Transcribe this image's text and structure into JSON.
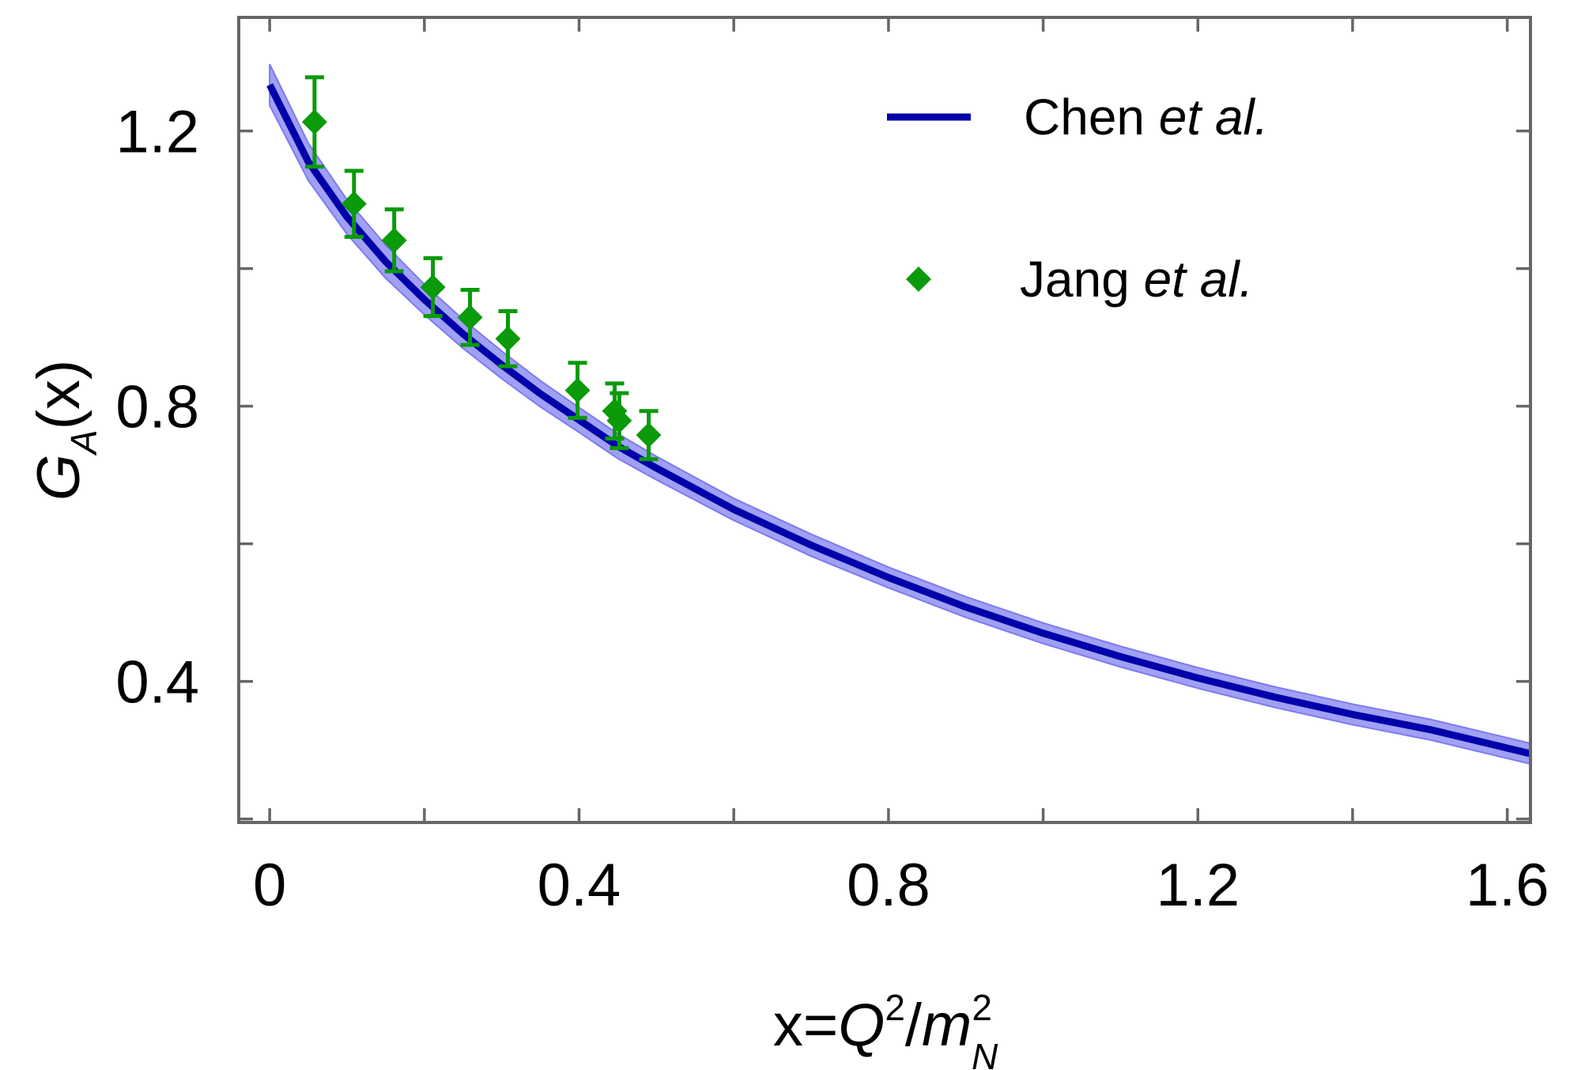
{
  "chart_data": {
    "type": "line",
    "title": "",
    "xlabel": {
      "prefix": "x=",
      "var": "Q",
      "sup": "2",
      "slash": "/",
      "den": "m",
      "den_sup": "2",
      "den_sub": "N"
    },
    "ylabel": {
      "main": "G",
      "sub": "A",
      "suffix": "(x)"
    },
    "xlim": [
      -0.04,
      1.63
    ],
    "ylim": [
      0.195,
      1.365
    ],
    "x_ticks": [
      0,
      0.2,
      0.4,
      0.6,
      0.8,
      1.0,
      1.2,
      1.4,
      1.6
    ],
    "x_tick_labels": [
      {
        "value": 0,
        "label": "0"
      },
      {
        "value": 0.4,
        "label": "0.4"
      },
      {
        "value": 0.8,
        "label": "0.8"
      },
      {
        "value": 1.2,
        "label": "1.2"
      },
      {
        "value": 1.6,
        "label": "1.6"
      }
    ],
    "y_ticks": [
      0.2,
      0.4,
      0.6,
      0.8,
      1.0,
      1.2
    ],
    "y_tick_labels": [
      {
        "value": 0.4,
        "label": "0.4"
      },
      {
        "value": 0.8,
        "label": "0.8"
      },
      {
        "value": 1.2,
        "label": "1.2"
      }
    ],
    "grid": false,
    "legend_position": "top-right",
    "series": [
      {
        "name": "Chen",
        "name_suffix": "et al.",
        "kind": "line-with-band",
        "color": "#0000aa",
        "band_color": "#7b7bf0",
        "x": [
          0,
          0.05,
          0.1,
          0.15,
          0.2,
          0.25,
          0.3,
          0.35,
          0.4,
          0.45,
          0.5,
          0.6,
          0.7,
          0.8,
          0.9,
          1.0,
          1.1,
          1.2,
          1.3,
          1.4,
          1.5,
          1.63
        ],
        "y": [
          1.267,
          1.155,
          1.075,
          1.01,
          0.955,
          0.905,
          0.86,
          0.818,
          0.78,
          0.742,
          0.71,
          0.65,
          0.598,
          0.551,
          0.508,
          0.47,
          0.436,
          0.405,
          0.377,
          0.352,
          0.33,
          0.295
        ],
        "band_half_width": [
          0.03,
          0.027,
          0.025,
          0.024,
          0.022,
          0.021,
          0.02,
          0.019,
          0.018,
          0.018,
          0.017,
          0.016,
          0.016,
          0.015,
          0.015,
          0.015,
          0.015,
          0.015,
          0.015,
          0.015,
          0.015,
          0.015
        ]
      },
      {
        "name": "Jang",
        "name_suffix": "et al.",
        "kind": "scatter-errorbar",
        "color": "#0a9a0a",
        "points": [
          {
            "x": 0.058,
            "y": 1.213,
            "err": 0.065
          },
          {
            "x": 0.109,
            "y": 1.094,
            "err": 0.048
          },
          {
            "x": 0.161,
            "y": 1.041,
            "err": 0.045
          },
          {
            "x": 0.211,
            "y": 0.973,
            "err": 0.042
          },
          {
            "x": 0.259,
            "y": 0.929,
            "err": 0.04
          },
          {
            "x": 0.308,
            "y": 0.898,
            "err": 0.04
          },
          {
            "x": 0.398,
            "y": 0.823,
            "err": 0.04
          },
          {
            "x": 0.446,
            "y": 0.793,
            "err": 0.04
          },
          {
            "x": 0.452,
            "y": 0.779,
            "err": 0.04
          },
          {
            "x": 0.49,
            "y": 0.758,
            "err": 0.035
          }
        ]
      }
    ]
  }
}
